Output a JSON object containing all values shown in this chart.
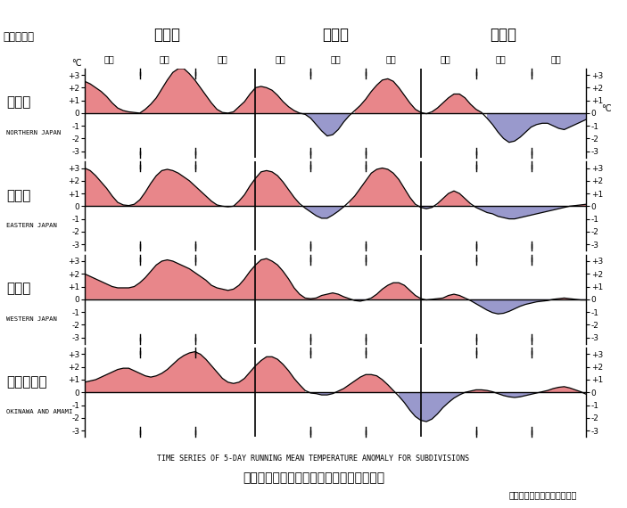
{
  "title_ja": "地域平均気温平年差の５日移動平均時系列",
  "title_en": "TIME SERIES OF 5-DAY RUNNING MEAN TEMPERATURE ANOMALY FOR SUBDIVISIONS",
  "update_date": "更新日：２０２５年１月６日",
  "year_label": "２０２４年",
  "months": [
    "１０月",
    "１１月",
    "１２月"
  ],
  "dekads": [
    "上旬",
    "中旬",
    "下旬",
    "上旬",
    "中旬",
    "下旬",
    "上旬",
    "中旬",
    "下旬"
  ],
  "regions": [
    {
      "ja": "北日本",
      "en": "NORTHERN JAPAN"
    },
    {
      "ja": "東日本",
      "en": "EASTERN JAPAN"
    },
    {
      "ja": "西日本",
      "en": "WESTERN JAPAN"
    },
    {
      "ja": "沖縄・奠美",
      "en": "OKINAWA AND AMAMI"
    }
  ],
  "pink_color": "#E8868A",
  "blue_color": "#9999CC",
  "line_color": "#000000",
  "bg_color": "#FFFFFF",
  "n_points": 92,
  "northern_japan": [
    2.5,
    2.3,
    2.0,
    1.7,
    1.3,
    0.8,
    0.4,
    0.2,
    0.1,
    0.05,
    0.0,
    0.3,
    0.7,
    1.2,
    1.9,
    2.6,
    3.2,
    3.5,
    3.5,
    3.1,
    2.6,
    2.0,
    1.4,
    0.8,
    0.3,
    0.05,
    0.0,
    0.1,
    0.5,
    0.9,
    1.5,
    2.0,
    2.1,
    2.0,
    1.8,
    1.4,
    0.9,
    0.5,
    0.2,
    0.0,
    -0.1,
    -0.4,
    -0.9,
    -1.4,
    -1.8,
    -1.7,
    -1.3,
    -0.7,
    -0.2,
    0.2,
    0.6,
    1.1,
    1.7,
    2.2,
    2.6,
    2.7,
    2.5,
    2.0,
    1.4,
    0.8,
    0.3,
    0.05,
    -0.05,
    0.1,
    0.4,
    0.8,
    1.2,
    1.5,
    1.5,
    1.2,
    0.7,
    0.3,
    0.05,
    -0.4,
    -0.9,
    -1.5,
    -2.0,
    -2.3,
    -2.2,
    -1.9,
    -1.5,
    -1.1,
    -0.9,
    -0.8,
    -0.8,
    -1.0,
    -1.2,
    -1.3,
    -1.1,
    -0.9,
    -0.7,
    -0.5
  ],
  "eastern_japan": [
    3.0,
    2.8,
    2.4,
    1.9,
    1.4,
    0.8,
    0.3,
    0.1,
    0.05,
    0.15,
    0.5,
    1.1,
    1.8,
    2.4,
    2.8,
    2.9,
    2.8,
    2.6,
    2.3,
    2.0,
    1.6,
    1.2,
    0.8,
    0.4,
    0.1,
    0.0,
    -0.05,
    0.0,
    0.4,
    0.9,
    1.6,
    2.2,
    2.7,
    2.8,
    2.7,
    2.4,
    1.9,
    1.3,
    0.7,
    0.2,
    -0.15,
    -0.45,
    -0.75,
    -0.95,
    -0.95,
    -0.7,
    -0.4,
    -0.05,
    0.35,
    0.8,
    1.4,
    2.0,
    2.6,
    2.9,
    3.0,
    2.9,
    2.6,
    2.1,
    1.4,
    0.7,
    0.15,
    -0.1,
    -0.2,
    -0.1,
    0.2,
    0.6,
    1.0,
    1.2,
    1.0,
    0.6,
    0.2,
    -0.1,
    -0.3,
    -0.5,
    -0.6,
    -0.8,
    -0.9,
    -1.0,
    -1.0,
    -0.9,
    -0.8,
    -0.7,
    -0.6,
    -0.5,
    -0.4,
    -0.3,
    -0.2,
    -0.1,
    0.0,
    0.05,
    0.1,
    0.15
  ],
  "western_japan": [
    2.0,
    1.8,
    1.6,
    1.4,
    1.2,
    1.0,
    0.9,
    0.9,
    0.9,
    1.0,
    1.3,
    1.7,
    2.2,
    2.7,
    3.0,
    3.1,
    3.0,
    2.8,
    2.6,
    2.4,
    2.1,
    1.8,
    1.5,
    1.1,
    0.9,
    0.8,
    0.7,
    0.8,
    1.1,
    1.6,
    2.2,
    2.7,
    3.1,
    3.2,
    3.0,
    2.7,
    2.2,
    1.6,
    0.9,
    0.4,
    0.1,
    0.05,
    0.1,
    0.3,
    0.4,
    0.5,
    0.4,
    0.2,
    0.05,
    -0.1,
    -0.15,
    -0.05,
    0.1,
    0.4,
    0.8,
    1.1,
    1.3,
    1.3,
    1.1,
    0.7,
    0.3,
    0.05,
    -0.05,
    0.0,
    0.05,
    0.1,
    0.3,
    0.4,
    0.3,
    0.1,
    -0.1,
    -0.35,
    -0.6,
    -0.85,
    -1.05,
    -1.15,
    -1.1,
    -0.95,
    -0.75,
    -0.55,
    -0.4,
    -0.3,
    -0.2,
    -0.15,
    -0.1,
    0.0,
    0.05,
    0.1,
    0.05,
    0.0,
    -0.05,
    -0.05
  ],
  "okinawa_amami": [
    0.8,
    0.9,
    1.0,
    1.2,
    1.4,
    1.6,
    1.8,
    1.9,
    1.9,
    1.7,
    1.5,
    1.3,
    1.2,
    1.3,
    1.5,
    1.8,
    2.2,
    2.6,
    2.9,
    3.1,
    3.2,
    3.0,
    2.6,
    2.1,
    1.6,
    1.1,
    0.8,
    0.7,
    0.8,
    1.1,
    1.6,
    2.1,
    2.5,
    2.8,
    2.8,
    2.6,
    2.2,
    1.7,
    1.1,
    0.6,
    0.15,
    -0.05,
    -0.1,
    -0.2,
    -0.2,
    -0.1,
    0.1,
    0.3,
    0.6,
    0.9,
    1.2,
    1.4,
    1.4,
    1.3,
    1.0,
    0.6,
    0.15,
    -0.3,
    -0.8,
    -1.4,
    -1.9,
    -2.2,
    -2.3,
    -2.1,
    -1.7,
    -1.2,
    -0.8,
    -0.45,
    -0.2,
    0.0,
    0.1,
    0.2,
    0.2,
    0.15,
    0.05,
    -0.1,
    -0.25,
    -0.35,
    -0.4,
    -0.35,
    -0.25,
    -0.15,
    -0.05,
    0.05,
    0.15,
    0.3,
    0.4,
    0.45,
    0.35,
    0.2,
    0.05,
    -0.15
  ]
}
